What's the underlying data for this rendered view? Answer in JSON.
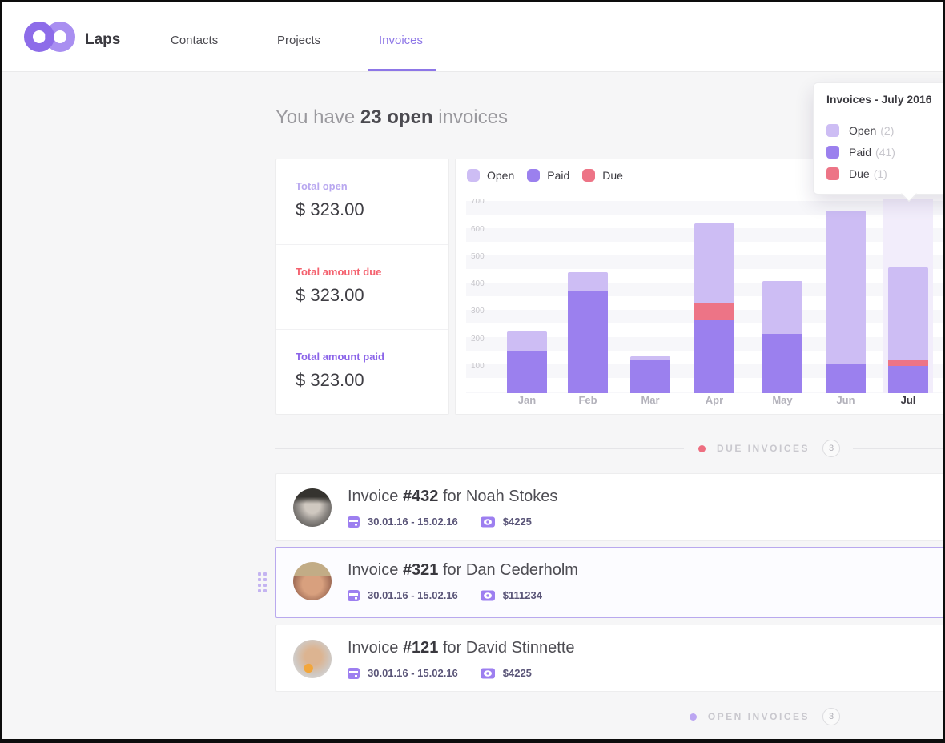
{
  "brand": "Laps",
  "nav": {
    "items": [
      {
        "label": "Contacts",
        "active": false
      },
      {
        "label": "Projects",
        "active": false
      },
      {
        "label": "Invoices",
        "active": true
      }
    ],
    "active_color": "#8d76e7"
  },
  "heading": {
    "prefix": "You have ",
    "highlight": "23 open",
    "suffix": " invoices"
  },
  "stats": [
    {
      "label": "Total open",
      "value": "$ 323.00",
      "color": "#b9a8f0"
    },
    {
      "label": "Total amount due",
      "value": "$ 323.00",
      "color": "#f4616e"
    },
    {
      "label": "Total amount paid",
      "value": "$ 323.00",
      "color": "#8b64e9"
    }
  ],
  "chart_data": {
    "type": "bar",
    "stacked": true,
    "categories": [
      "Jan",
      "Feb",
      "Mar",
      "Apr",
      "May",
      "Jun",
      "Jul"
    ],
    "series": [
      {
        "name": "Open",
        "color": "#cdbdf4",
        "values": [
          70,
          65,
          15,
          290,
          195,
          560,
          340
        ]
      },
      {
        "name": "Paid",
        "color": "#9b80ee",
        "values": [
          155,
          375,
          120,
          265,
          215,
          105,
          100
        ]
      },
      {
        "name": "Due",
        "color": "#ed7486",
        "values": [
          0,
          0,
          0,
          65,
          0,
          0,
          20
        ]
      }
    ],
    "stack_order": [
      "Paid",
      "Due",
      "Open"
    ],
    "ylim": [
      0,
      710
    ],
    "yticks": [
      100,
      200,
      300,
      400,
      500,
      600,
      700
    ],
    "highlight_month": "Jul",
    "legend_position": "top-left",
    "grid": "striped"
  },
  "tooltip": {
    "title": "Invoices - July 2016",
    "rows": [
      {
        "label": "Open",
        "count": "(2)",
        "color": "#cdbdf4"
      },
      {
        "label": "Paid",
        "count": "(41)",
        "color": "#9b80ee"
      },
      {
        "label": "Due",
        "count": "(1)",
        "color": "#ed7486"
      }
    ]
  },
  "sections": {
    "due": {
      "label": "DUE INVOICES",
      "count": "3",
      "dot_color": "#ee6e80"
    },
    "open": {
      "label": "OPEN INVOICES",
      "count": "3",
      "dot_color": "#bca6f2"
    }
  },
  "invoices": [
    {
      "prefix": "Invoice ",
      "number": "#432",
      "connector": " for ",
      "client": "Noah Stokes",
      "date": "30.01.16 - 15.02.16",
      "amount": "$4225"
    },
    {
      "prefix": "Invoice ",
      "number": "#321",
      "connector": " for ",
      "client": "Dan Cederholm",
      "date": "30.01.16 - 15.02.16",
      "amount": "$111234",
      "selected": true
    },
    {
      "prefix": "Invoice ",
      "number": "#121",
      "connector": " for ",
      "client": "David Stinnette",
      "date": "30.01.16 - 15.02.16",
      "amount": "$4225"
    }
  ]
}
